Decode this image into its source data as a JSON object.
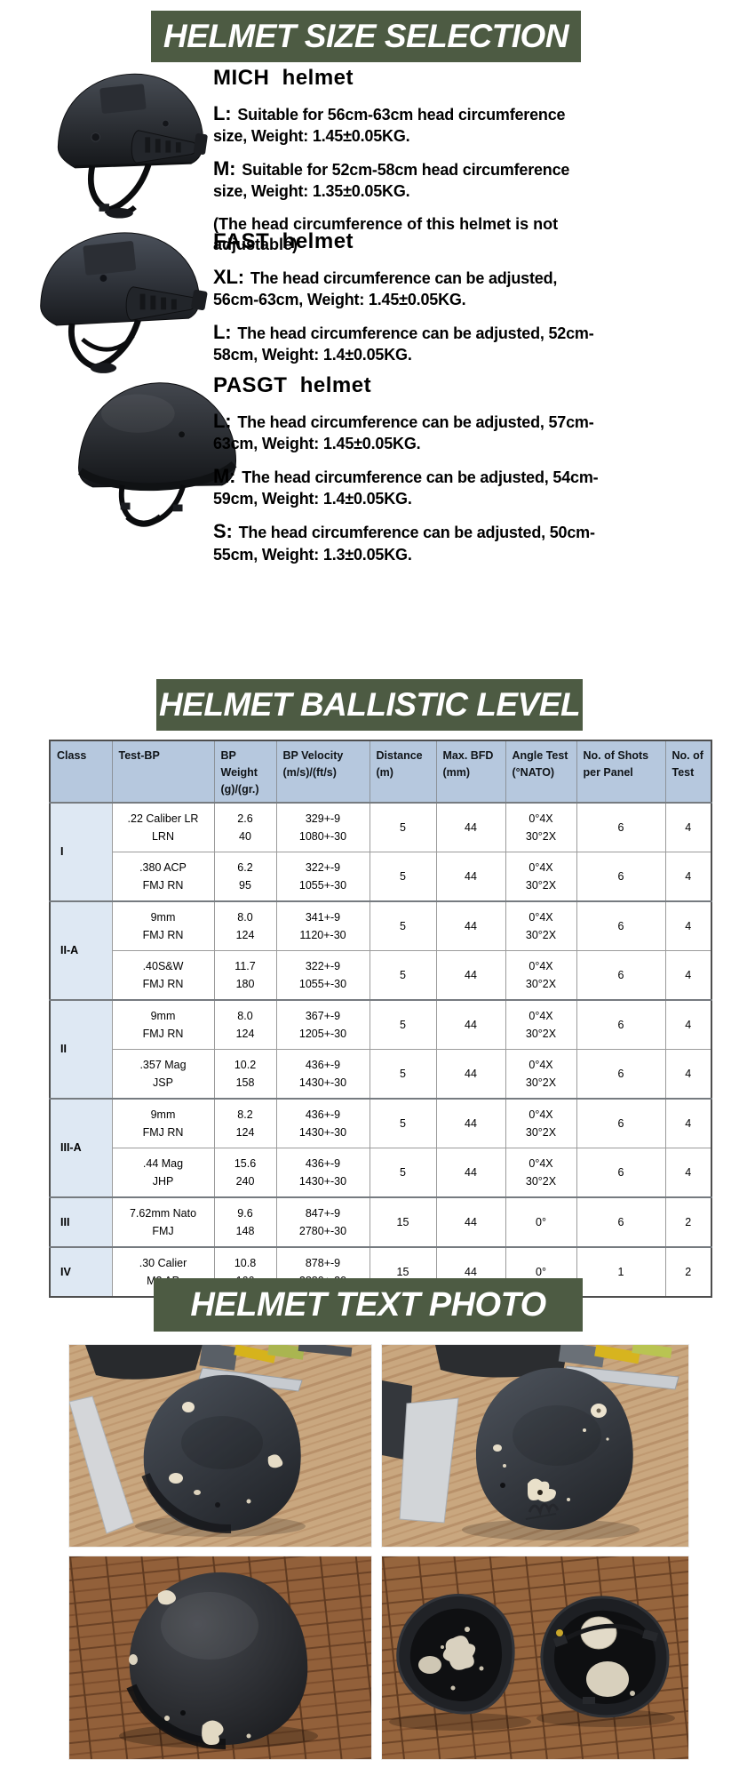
{
  "page": {
    "background": "#ffffff",
    "accent_green": "#4d5b43",
    "table_header_blue": "#b6c8de",
    "table_class_column_blue": "#dee8f3"
  },
  "size_selection": {
    "title": "HELMET SIZE SELECTION",
    "items": [
      {
        "name": "MICH  helmet",
        "image": "mich-tactical-helmet",
        "specs": [
          {
            "label": "L:",
            "text": "Suitable for 56cm-63cm head circumference size, Weight: 1.45±0.05KG."
          },
          {
            "label": "M:",
            "text": "Suitable for 52cm-58cm head circumference size, Weight: 1.35±0.05KG."
          }
        ],
        "note": "(The head circumference of this helmet is not adjustable)"
      },
      {
        "name": "FAST  helmet",
        "image": "fast-tactical-helmet",
        "specs": [
          {
            "label": "XL:",
            "text": "The head circumference can be adjusted, 56cm-63cm, Weight: 1.45±0.05KG."
          },
          {
            "label": "L:",
            "text": "The head circumference can be adjusted, 52cm-58cm, Weight: 1.4±0.05KG."
          }
        ]
      },
      {
        "name": "PASGT  helmet",
        "image": "pasgt-ballistic-helmet",
        "specs": [
          {
            "label": "L:",
            "text": "The head circumference can be adjusted, 57cm-63cm, Weight: 1.45±0.05KG."
          },
          {
            "label": "M:",
            "text": "The head circumference can be adjusted, 54cm-59cm, Weight: 1.4±0.05KG."
          },
          {
            "label": "S:",
            "text": "The head circumference can be adjusted, 50cm-55cm, Weight: 1.3±0.05KG."
          }
        ]
      }
    ]
  },
  "ballistic": {
    "title": "HELMET BALLISTIC LEVEL",
    "table": {
      "headers": [
        "Class",
        "Test-BP",
        "BP Weight (g)/(gr.)",
        "BP Velocity (m/s)/(ft/s)",
        "Distance (m)",
        "Max. BFD (mm)",
        "Angle Test (°NATO)",
        "No. of Shots per Panel",
        "No. of Test"
      ],
      "groups": [
        {
          "label": "I",
          "rows": [
            {
              "test_bp": [
                ".22 Caliber LR",
                "LRN"
              ],
              "bp_weight": [
                "2.6",
                "40"
              ],
              "bp_velocity": [
                "329+-9",
                "1080+-30"
              ],
              "distance": "5",
              "max_bfd": "44",
              "angle_test": [
                "0°4X",
                "30°2X"
              ],
              "shots_per_panel": "6",
              "num_tests": "4"
            },
            {
              "test_bp": [
                ".380 ACP",
                "FMJ RN"
              ],
              "bp_weight": [
                "6.2",
                "95"
              ],
              "bp_velocity": [
                "322+-9",
                "1055+-30"
              ],
              "distance": "5",
              "max_bfd": "44",
              "angle_test": [
                "0°4X",
                "30°2X"
              ],
              "shots_per_panel": "6",
              "num_tests": "4"
            }
          ]
        },
        {
          "label": "II-A",
          "rows": [
            {
              "test_bp": [
                "9mm",
                "FMJ RN"
              ],
              "bp_weight": [
                "8.0",
                "124"
              ],
              "bp_velocity": [
                "341+-9",
                "1120+-30"
              ],
              "distance": "5",
              "max_bfd": "44",
              "angle_test": [
                "0°4X",
                "30°2X"
              ],
              "shots_per_panel": "6",
              "num_tests": "4"
            },
            {
              "test_bp": [
                ".40S&W",
                "FMJ RN"
              ],
              "bp_weight": [
                "11.7",
                "180"
              ],
              "bp_velocity": [
                "322+-9",
                "1055+-30"
              ],
              "distance": "5",
              "max_bfd": "44",
              "angle_test": [
                "0°4X",
                "30°2X"
              ],
              "shots_per_panel": "6",
              "num_tests": "4"
            }
          ]
        },
        {
          "label": "II",
          "rows": [
            {
              "test_bp": [
                "9mm",
                "FMJ RN"
              ],
              "bp_weight": [
                "8.0",
                "124"
              ],
              "bp_velocity": [
                "367+-9",
                "1205+-30"
              ],
              "distance": "5",
              "max_bfd": "44",
              "angle_test": [
                "0°4X",
                "30°2X"
              ],
              "shots_per_panel": "6",
              "num_tests": "4"
            },
            {
              "test_bp": [
                ".357 Mag",
                "JSP"
              ],
              "bp_weight": [
                "10.2",
                "158"
              ],
              "bp_velocity": [
                "436+-9",
                "1430+-30"
              ],
              "distance": "5",
              "max_bfd": "44",
              "angle_test": [
                "0°4X",
                "30°2X"
              ],
              "shots_per_panel": "6",
              "num_tests": "4"
            }
          ]
        },
        {
          "label": "III-A",
          "rows": [
            {
              "test_bp": [
                "9mm",
                "FMJ RN"
              ],
              "bp_weight": [
                "8.2",
                "124"
              ],
              "bp_velocity": [
                "436+-9",
                "1430+-30"
              ],
              "distance": "5",
              "max_bfd": "44",
              "angle_test": [
                "0°4X",
                "30°2X"
              ],
              "shots_per_panel": "6",
              "num_tests": "4"
            },
            {
              "test_bp": [
                ".44 Mag",
                "JHP"
              ],
              "bp_weight": [
                "15.6",
                "240"
              ],
              "bp_velocity": [
                "436+-9",
                "1430+-30"
              ],
              "distance": "5",
              "max_bfd": "44",
              "angle_test": [
                "0°4X",
                "30°2X"
              ],
              "shots_per_panel": "6",
              "num_tests": "4"
            }
          ]
        },
        {
          "label": "III",
          "rows": [
            {
              "test_bp": [
                "7.62mm Nato",
                "FMJ"
              ],
              "bp_weight": [
                "9.6",
                "148"
              ],
              "bp_velocity": [
                "847+-9",
                "2780+-30"
              ],
              "distance": "15",
              "max_bfd": "44",
              "angle_test": "0°",
              "shots_per_panel": "6",
              "num_tests": "2"
            }
          ]
        },
        {
          "label": "IV",
          "rows": [
            {
              "test_bp": [
                ".30 Calier",
                "M2 AP"
              ],
              "bp_weight": [
                "10.8",
                "166"
              ],
              "bp_velocity": [
                "878+-9",
                "2880+-30"
              ],
              "distance": "15",
              "max_bfd": "44",
              "angle_test": "0°",
              "shots_per_panel": "1",
              "num_tests": "2"
            }
          ]
        }
      ]
    }
  },
  "photos": {
    "title": "HELMET TEXT PHOTO",
    "items": [
      {
        "name": "tested-helmet-on-desk-front-view"
      },
      {
        "name": "tested-helmet-on-desk-top-view"
      },
      {
        "name": "tested-helmet-on-floor-top-view"
      },
      {
        "name": "tested-helmet-shells-interior-view"
      }
    ]
  }
}
